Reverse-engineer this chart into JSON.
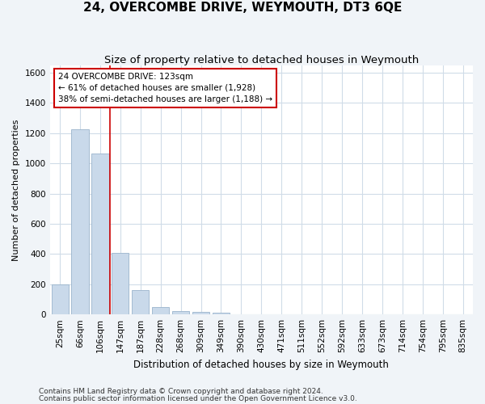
{
  "title": "24, OVERCOMBE DRIVE, WEYMOUTH, DT3 6QE",
  "subtitle": "Size of property relative to detached houses in Weymouth",
  "xlabel": "Distribution of detached houses by size in Weymouth",
  "ylabel": "Number of detached properties",
  "categories": [
    "25sqm",
    "66sqm",
    "106sqm",
    "147sqm",
    "187sqm",
    "228sqm",
    "268sqm",
    "309sqm",
    "349sqm",
    "390sqm",
    "430sqm",
    "471sqm",
    "511sqm",
    "552sqm",
    "592sqm",
    "633sqm",
    "673sqm",
    "714sqm",
    "754sqm",
    "795sqm",
    "835sqm"
  ],
  "values": [
    200,
    1225,
    1065,
    405,
    160,
    50,
    20,
    15,
    10,
    0,
    0,
    0,
    0,
    0,
    0,
    0,
    0,
    0,
    0,
    0,
    0
  ],
  "bar_color": "#c9d9ea",
  "bar_edge_color": "#9ab4cc",
  "vline_x": 2.5,
  "vline_color": "#cc0000",
  "ylim": [
    0,
    1650
  ],
  "yticks": [
    0,
    200,
    400,
    600,
    800,
    1000,
    1200,
    1400,
    1600
  ],
  "annotation_text": "24 OVERCOMBE DRIVE: 123sqm\n← 61% of detached houses are smaller (1,928)\n38% of semi-detached houses are larger (1,188) →",
  "annotation_box_color": "#ffffff",
  "annotation_box_edge": "#cc0000",
  "footnote1": "Contains HM Land Registry data © Crown copyright and database right 2024.",
  "footnote2": "Contains public sector information licensed under the Open Government Licence v3.0.",
  "plot_bg_color": "#ffffff",
  "fig_bg_color": "#f0f4f8",
  "grid_color": "#d0dce8",
  "title_fontsize": 11,
  "subtitle_fontsize": 9.5,
  "xlabel_fontsize": 8.5,
  "ylabel_fontsize": 8,
  "tick_fontsize": 7.5,
  "footnote_fontsize": 6.5
}
